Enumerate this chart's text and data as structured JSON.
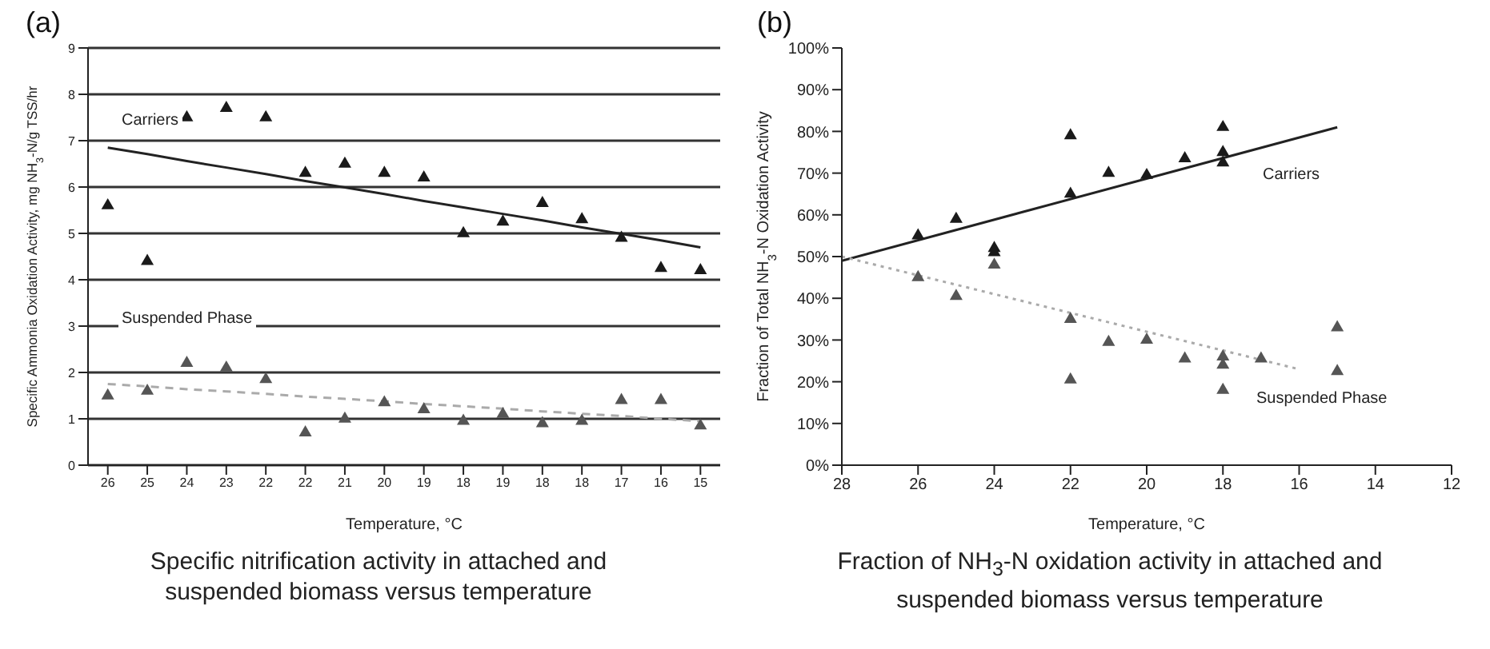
{
  "chart_data": [
    {
      "type": "scatter",
      "title": "(a)",
      "xlabel": "Temperature, °C",
      "ylabel": "Specific Ammonia Oxidation Activity, mg NH$_{3}$-N/g TSS/hr",
      "categories": [
        "26",
        "25",
        "24",
        "23",
        "22",
        "22",
        "21",
        "20",
        "19",
        "18",
        "19",
        "18",
        "18",
        "17",
        "16",
        "15"
      ],
      "series": [
        {
          "name": "Carriers",
          "color": "#1a1a1a",
          "marker": "triangle",
          "values": [
            5.6,
            4.4,
            7.5,
            7.7,
            7.5,
            6.3,
            6.5,
            6.3,
            6.2,
            5.0,
            5.25,
            5.65,
            5.3,
            4.9,
            4.25,
            4.2
          ]
        },
        {
          "type": "line",
          "color": "#222222",
          "marker": "none",
          "line_style": "solid",
          "values": [
            6.85,
            6.71,
            6.56,
            6.42,
            6.28,
            6.13,
            5.99,
            5.85,
            5.7,
            5.56,
            5.42,
            5.28,
            5.13,
            4.99,
            4.85,
            4.7
          ]
        },
        {
          "name": "Suspended Phase",
          "color": "#555555",
          "marker": "triangle",
          "values": [
            1.5,
            1.6,
            2.2,
            2.1,
            1.85,
            0.7,
            1.0,
            1.35,
            1.2,
            0.95,
            1.1,
            0.9,
            0.95,
            1.4,
            1.4,
            0.85
          ]
        },
        {
          "type": "line",
          "color": "#aaaaaa",
          "marker": "none",
          "line_style": "dashed",
          "values": [
            1.75,
            1.7,
            1.64,
            1.59,
            1.54,
            1.48,
            1.43,
            1.38,
            1.32,
            1.27,
            1.22,
            1.16,
            1.11,
            1.06,
            1.0,
            0.95
          ]
        }
      ],
      "ylim": [
        0,
        9
      ],
      "yticks": [
        0,
        1,
        2,
        3,
        4,
        5,
        6,
        7,
        8,
        9
      ],
      "grid": "y",
      "legend": false,
      "annotations": [
        "Specific nitrification activity in attached and suspended biomass versus temperature"
      ]
    },
    {
      "type": "scatter",
      "title": "(b)",
      "xlabel": "Temperature, °C",
      "ylabel": "Fraction of Total NH$_{3}$-N Oxidation Activity",
      "series": [
        {
          "name": "Carriers",
          "color": "#1a1a1a",
          "marker": "triangle",
          "x": [
            26,
            25,
            24,
            24,
            22,
            22,
            21,
            20,
            19,
            18,
            18,
            18
          ],
          "values": [
            55,
            59,
            52,
            51,
            79,
            65,
            70,
            69.5,
            73.5,
            81,
            75,
            72.5
          ]
        },
        {
          "type": "line",
          "color": "#222222",
          "marker": "none",
          "line_style": "solid",
          "x": [
            28,
            15
          ],
          "values": [
            49,
            81
          ]
        },
        {
          "name": "Suspended Phase",
          "color": "#555555",
          "marker": "triangle",
          "x": [
            26,
            25,
            24,
            22,
            22,
            21,
            20,
            19,
            18,
            18,
            18,
            17,
            15,
            15
          ],
          "values": [
            45,
            40.5,
            48,
            35,
            20.5,
            29.5,
            30,
            25.5,
            26,
            24,
            18,
            25.5,
            33,
            22.5
          ]
        },
        {
          "type": "line",
          "color": "#aaaaaa",
          "marker": "none",
          "line_style": "dotted",
          "x": [
            28,
            16
          ],
          "values": [
            50,
            23
          ]
        }
      ],
      "xlim": [
        28,
        12
      ],
      "xticks": [
        28,
        26,
        24,
        22,
        20,
        18,
        16,
        14,
        12
      ],
      "ylim": [
        0,
        100
      ],
      "yticks": [
        {
          "value": 0,
          "label": "0%"
        },
        {
          "value": 10,
          "label": "10%"
        },
        {
          "value": 20,
          "label": "20%"
        },
        {
          "value": 30,
          "label": "30%"
        },
        {
          "value": 40,
          "label": "40%"
        },
        {
          "value": 50,
          "label": "50%"
        },
        {
          "value": 60,
          "label": "60%"
        },
        {
          "value": 70,
          "label": "70%"
        },
        {
          "value": 80,
          "label": "80%"
        },
        {
          "value": 90,
          "label": "90%"
        },
        {
          "value": 100,
          "label": "100%"
        }
      ],
      "grid": false,
      "legend": false,
      "annotations": [
        "Fraction of NH$_{3}$-N oxidation activity in attached and suspended biomass versus temperature"
      ]
    }
  ]
}
